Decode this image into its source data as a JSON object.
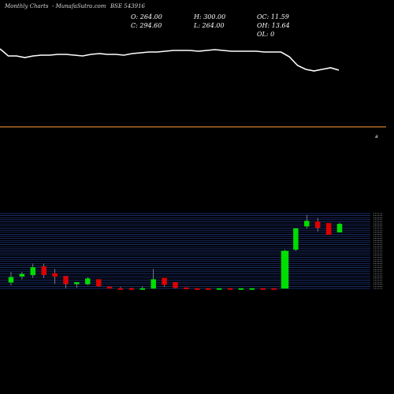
{
  "header": {
    "left": "Monthly Charts",
    "middle": "- MunafaSutra.com",
    "ticker": "BSE 543916"
  },
  "ohlc": {
    "open": "O: 264.00",
    "close": "C: 294.60",
    "high": "H: 300.00",
    "low": "L: 264.00",
    "oc": "OC: 11.59",
    "oh": "OH: 13.64",
    "ol": "OL: 0"
  },
  "colors": {
    "background": "#000000",
    "up": "#00dd00",
    "down": "#dd0000",
    "line": "#ffffff",
    "separator": "#d08030",
    "grid": "#223a88"
  },
  "chart_data": [
    {
      "type": "line",
      "points": [
        98,
        89,
        89,
        87,
        89,
        90,
        90,
        91,
        91,
        90,
        89,
        91,
        92,
        91,
        91,
        90,
        92,
        93,
        94,
        94,
        95,
        96,
        96,
        96,
        95,
        96,
        97,
        96,
        95,
        95,
        95,
        95,
        94,
        94,
        94,
        88,
        77,
        72,
        70,
        72,
        74,
        71
      ],
      "marker_label": "a"
    },
    {
      "type": "candlestick",
      "y_scale": [
        250,
        350
      ],
      "candles": [
        {
          "o": 258,
          "h": 272,
          "l": 254,
          "c": 265
        },
        {
          "o": 266,
          "h": 272,
          "l": 262,
          "c": 269
        },
        {
          "o": 268,
          "h": 283,
          "l": 264,
          "c": 278
        },
        {
          "o": 279,
          "h": 283,
          "l": 264,
          "c": 268
        },
        {
          "o": 270,
          "h": 276,
          "l": 256,
          "c": 266
        },
        {
          "o": 266,
          "h": 266,
          "l": 250,
          "c": 256
        },
        {
          "o": 256,
          "h": 258,
          "l": 251,
          "c": 258
        },
        {
          "o": 256,
          "h": 265,
          "l": 254,
          "c": 263
        },
        {
          "o": 262,
          "h": 262,
          "l": 252,
          "c": 253
        },
        {
          "o": 252,
          "h": 252,
          "l": 239,
          "c": 241
        },
        {
          "o": 248,
          "h": 252,
          "l": 243,
          "c": 245
        },
        {
          "o": 245,
          "h": 251,
          "l": 240,
          "c": 240
        },
        {
          "o": 243,
          "h": 253,
          "l": 237,
          "c": 244
        },
        {
          "o": 242,
          "h": 276,
          "l": 242,
          "c": 262
        },
        {
          "o": 264,
          "h": 264,
          "l": 252,
          "c": 255
        },
        {
          "o": 258,
          "h": 258,
          "l": 248,
          "c": 251
        },
        {
          "o": 251,
          "h": 251,
          "l": 245,
          "c": 247
        },
        {
          "o": 248,
          "h": 248,
          "l": 240,
          "c": 241
        },
        {
          "o": 241,
          "h": 241,
          "l": 239,
          "c": 240
        },
        {
          "o": 240,
          "h": 248,
          "l": 237,
          "c": 244
        },
        {
          "o": 243,
          "h": 243,
          "l": 227,
          "c": 227
        },
        {
          "o": 227,
          "h": 229,
          "l": 221,
          "c": 227
        },
        {
          "o": 226,
          "h": 229,
          "l": 226,
          "c": 227
        },
        {
          "o": 227,
          "h": 229,
          "l": 225,
          "c": 225
        },
        {
          "o": 225,
          "h": 227,
          "l": 224,
          "c": 224
        },
        {
          "o": 224,
          "h": 302,
          "l": 224,
          "c": 300
        },
        {
          "o": 302,
          "h": 330,
          "l": 300,
          "c": 330
        },
        {
          "o": 333,
          "h": 348,
          "l": 330,
          "c": 340
        },
        {
          "o": 339,
          "h": 344,
          "l": 326,
          "c": 331
        },
        {
          "o": 337,
          "h": 337,
          "l": 322,
          "c": 322
        },
        {
          "o": 325,
          "h": 338,
          "l": 325,
          "c": 336
        }
      ],
      "price_axis": "right"
    }
  ]
}
